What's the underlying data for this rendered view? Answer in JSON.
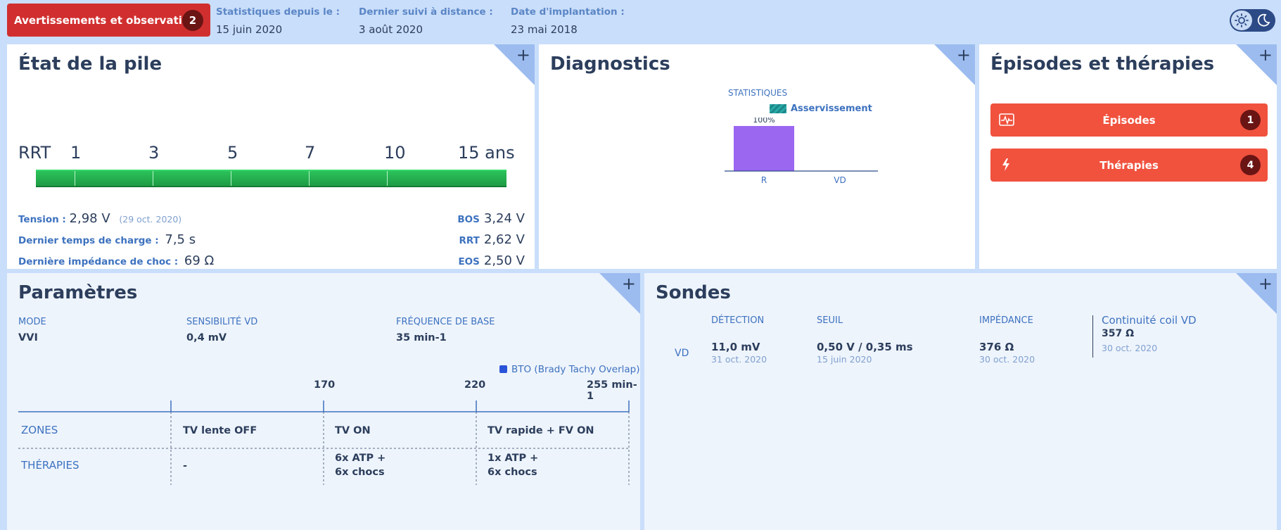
{
  "header": {
    "alert_label": "Avertissements et observations",
    "alert_count": "2",
    "fields": [
      {
        "label": "Statistiques depuis le :",
        "value": "15 juin 2020"
      },
      {
        "label": "Dernier suivi à distance :",
        "value": "3 août 2020"
      },
      {
        "label": "Date d'implantation :",
        "value": "23 mai 2018"
      }
    ]
  },
  "pile": {
    "title": "État de la pile",
    "scale": [
      "RRT",
      "1",
      "3",
      "5",
      "7",
      "10",
      "15 ans"
    ],
    "tension_label": "Tension :",
    "tension_value": "2,98 V",
    "tension_date": "(29 oct. 2020)",
    "charge_label": "Dernier temps de charge :",
    "charge_value": "7,5 s",
    "impedance_label": "Dernière impédance de choc :",
    "impedance_value": "69 Ω",
    "bos_label": "BOS",
    "bos_value": "3,24 V",
    "rrt_label": "RRT",
    "rrt_value": "2,62 V",
    "eos_label": "EOS",
    "eos_value": "2,50 V"
  },
  "diagnostics": {
    "title": "Diagnostics",
    "stats_label": "STATISTIQUES",
    "legend": "Asservissement",
    "bar_label": "100%",
    "bar_color": "#9b66f0",
    "legend_color": "#2aa8a8"
  },
  "chart_data": {
    "type": "bar",
    "categories": [
      "R",
      "VD"
    ],
    "series": [
      {
        "name": "Asservissement",
        "values": [
          100,
          0
        ]
      }
    ],
    "ylim": [
      0,
      100
    ]
  },
  "episodes": {
    "title": "Épisodes et thérapies",
    "episodes_label": "Épisodes",
    "episodes_count": "1",
    "therapies_label": "Thérapies",
    "therapies_count": "4"
  },
  "parametres": {
    "title": "Paramètres",
    "mode_label": "MODE",
    "mode_value": "VVI",
    "sens_label": "SENSIBILITÉ VD",
    "sens_value": "0,4 mV",
    "freq_label": "FRÉQUENCE DE BASE",
    "freq_value": "35 min-1",
    "bto_label": "BTO (Brady Tachy Overlap)",
    "bto_color": "#2a54d8",
    "scale": [
      "170",
      "220",
      "255 min-1"
    ],
    "zones_label": "ZONES",
    "therapies_label": "THÉRAPIES",
    "zones": [
      "TV lente OFF",
      "TV ON",
      "TV rapide + FV ON"
    ],
    "therapies": [
      "-",
      "6x ATP  +",
      "6x chocs",
      "1x ATP  +",
      "6x chocs"
    ]
  },
  "sondes": {
    "title": "Sondes",
    "detection_label": "DÉTECTION",
    "seuil_label": "SEUIL",
    "impedance_label": "IMPÉDANCE",
    "coil_label": "Continuité coil VD",
    "lead": "VD",
    "detection_value": "11,0 mV",
    "detection_date": "31 oct. 2020",
    "seuil_value": "0,50 V / 0,35 ms",
    "seuil_date": "15 juin 2020",
    "impedance_value": "376 Ω",
    "impedance_date": "30 oct. 2020",
    "coil_value": "357 Ω",
    "coil_date": "30 oct. 2020"
  }
}
